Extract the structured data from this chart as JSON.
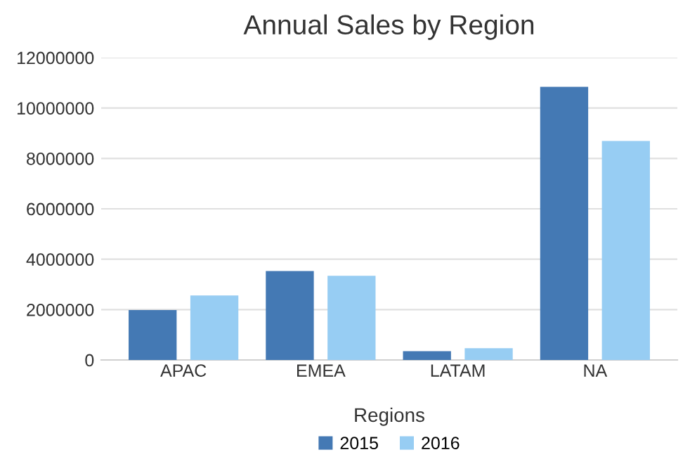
{
  "chart_data": {
    "type": "bar",
    "title": "Annual Sales by Region",
    "xlabel": "Regions",
    "categories": [
      "APAC",
      "EMEA",
      "LATAM",
      "NA"
    ],
    "series": [
      {
        "name": "2015",
        "color": "#4479b4",
        "values": [
          1980000,
          3530000,
          350000,
          10840000
        ]
      },
      {
        "name": "2016",
        "color": "#97cdf3",
        "values": [
          2560000,
          3340000,
          470000,
          8690000
        ]
      }
    ],
    "ylim": [
      0,
      12000000
    ],
    "yticks": [
      0,
      2000000,
      4000000,
      6000000,
      8000000,
      10000000,
      12000000
    ],
    "grid": "y",
    "legend": "bottom"
  }
}
